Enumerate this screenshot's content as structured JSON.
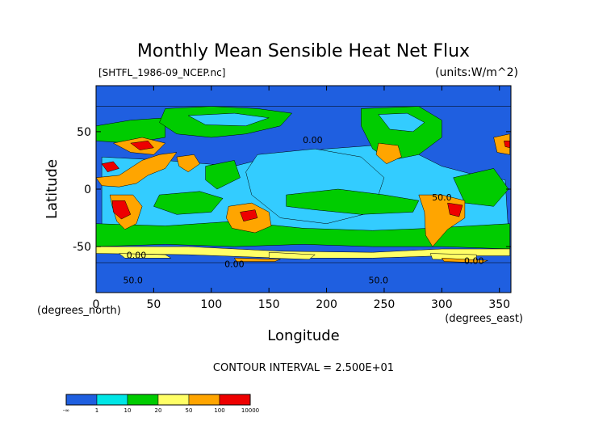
{
  "chart_data": {
    "type": "heatmap",
    "title": "Monthly Mean Sensible Heat Net Flux",
    "file_label": "[SHTFL_1986-09_NCEP.nc]",
    "units_label": "(units:W/m^2)",
    "xlabel": "Longitude",
    "ylabel": "Latitude",
    "x_unit_note": "(degrees_east)",
    "y_unit_note": "(degrees_north)",
    "xlim": [
      0,
      360
    ],
    "ylim": [
      -90,
      90
    ],
    "x_ticks": [
      {
        "value": 0,
        "label": "0"
      },
      {
        "value": 50,
        "label": "50"
      },
      {
        "value": 100,
        "label": "100"
      },
      {
        "value": 150,
        "label": "150"
      },
      {
        "value": 200,
        "label": "200"
      },
      {
        "value": 250,
        "label": "250"
      },
      {
        "value": 300,
        "label": "300"
      },
      {
        "value": 350,
        "label": "350"
      }
    ],
    "y_ticks": [
      {
        "value": 50,
        "label": "50"
      },
      {
        "value": 0,
        "label": "0"
      },
      {
        "value": -50,
        "label": "-50"
      }
    ],
    "contour_interval_text": "CONTOUR INTERVAL = 2.500E+01",
    "contour_labels": [
      {
        "text": "0.00",
        "lon": 188,
        "lat": 40
      },
      {
        "text": "50.0",
        "lon": 300,
        "lat": -10
      },
      {
        "text": "0.00",
        "lon": 35,
        "lat": -60
      },
      {
        "text": "0.00",
        "lon": 120,
        "lat": -68
      },
      {
        "text": "0.00",
        "lon": 328,
        "lat": -65
      },
      {
        "text": "50.0",
        "lon": 32,
        "lat": -82
      },
      {
        "text": "50.0",
        "lon": 245,
        "lat": -82
      }
    ],
    "colorbar": {
      "colors": [
        "#1f5fe0",
        "#00e6e6",
        "#00cc00",
        "#ffff66",
        "#ffa500",
        "#ee0000"
      ],
      "tick_labels": [
        "-∞",
        "1",
        "10",
        "20",
        "50",
        "100",
        "10000"
      ]
    },
    "color_classes": {
      "ocean_low": "#1f5fe0",
      "ocean_cool": "#33ccff",
      "moderate": "#00cc00",
      "warm": "#ffff66",
      "hot": "#ffa500",
      "very_hot": "#ee0000"
    }
  }
}
